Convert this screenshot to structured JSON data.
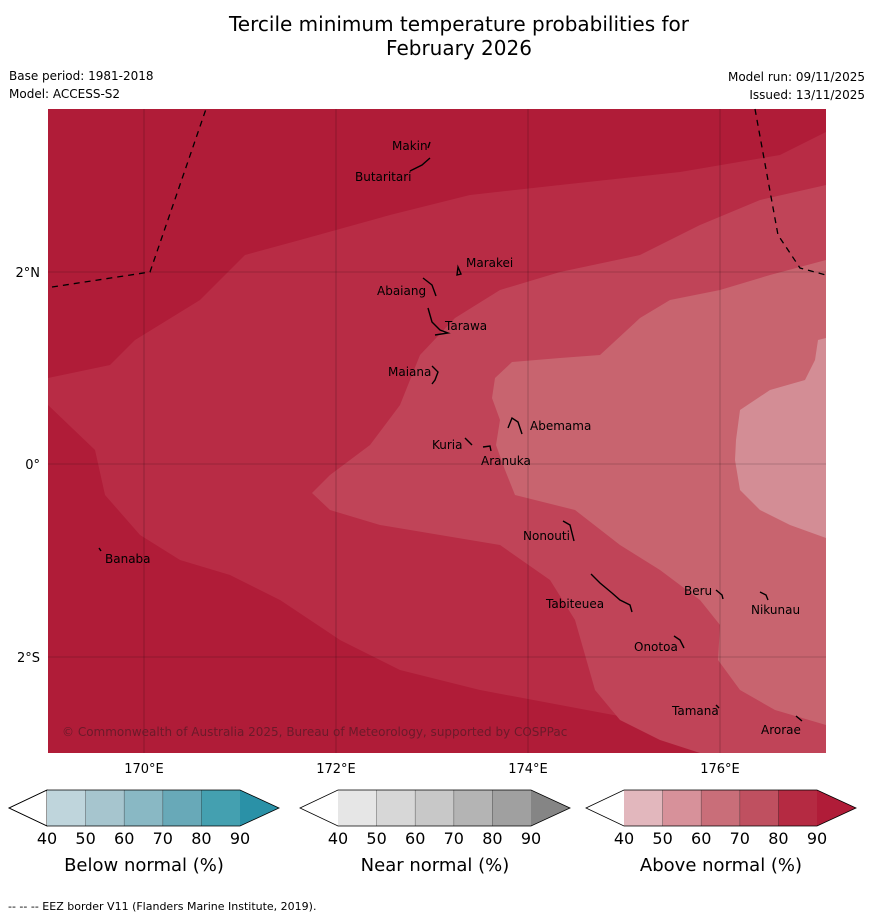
{
  "title_line1": "Tercile minimum temperature probabilities for",
  "title_line2": "February 2026",
  "base_period": "Base period: 1981-2018",
  "model": "Model: ACCESS-S2",
  "model_run": "Model run: 09/11/2025",
  "issued": "Issued: 13/11/2025",
  "lat_labels": [
    "2°N",
    "0°",
    "2°S"
  ],
  "lon_labels": [
    "170°E",
    "172°E",
    "174°E",
    "176°E"
  ],
  "places": [
    "Makin",
    "Butaritari",
    "Marakei",
    "Abaiang",
    "Tarawa",
    "Maiana",
    "Abemama",
    "Kuria",
    "Aranuka",
    "Nonouti",
    "Banaba",
    "Beru",
    "Nikunau",
    "Tabiteuea",
    "Onotoa",
    "Tamana",
    "Arorae"
  ],
  "copyright": "© Commonwealth of Australia 2025, Bureau of Meteorology, supported by COSPPac",
  "colorbars": [
    {
      "title": "Below normal (%)",
      "ticks": [
        "40",
        "50",
        "60",
        "70",
        "80",
        "90"
      ],
      "colors": [
        "#ffffff",
        "#bfd5dc",
        "#a6c5ce",
        "#89b8c4",
        "#68a9b8",
        "#44a0b0",
        "#2a91a7"
      ]
    },
    {
      "title": "Near normal (%)",
      "ticks": [
        "40",
        "50",
        "60",
        "70",
        "80",
        "90"
      ],
      "colors": [
        "#ffffff",
        "#e6e6e6",
        "#d7d7d7",
        "#c8c8c8",
        "#b4b4b4",
        "#a0a0a0",
        "#858585"
      ]
    },
    {
      "title": "Above normal (%)",
      "ticks": [
        "40",
        "50",
        "60",
        "70",
        "80",
        "90"
      ],
      "colors": [
        "#ffffff",
        "#e2b7bd",
        "#d7919a",
        "#c96e79",
        "#bf5060",
        "#b52a42",
        "#b01c38"
      ]
    }
  ],
  "footer": "-- -- -- EEZ border V11 (Flanders Marine Institute, 2019)."
}
